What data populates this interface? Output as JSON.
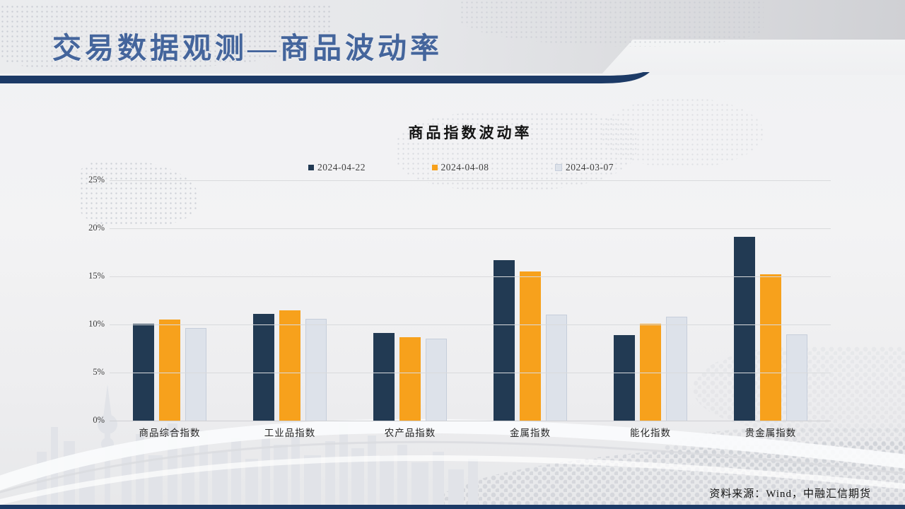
{
  "header": {
    "title": "交易数据观测—商品波动率"
  },
  "chart": {
    "title": "商品指数波动率"
  },
  "chart_data": {
    "type": "bar",
    "title": "商品指数波动率",
    "categories": [
      "商品综合指数",
      "工业品指数",
      "农产品指数",
      "金属指数",
      "能化指数",
      "贵金属指数"
    ],
    "series": [
      {
        "name": "2024-04-22",
        "color": "#223a53",
        "values": [
          10.1,
          11.1,
          9.1,
          16.7,
          8.9,
          19.1
        ]
      },
      {
        "name": "2024-04-08",
        "color": "#f7a11c",
        "values": [
          10.5,
          11.5,
          8.7,
          15.5,
          10.1,
          15.2
        ]
      },
      {
        "name": "2024-03-07",
        "color": "#dde2ea",
        "values": [
          9.6,
          10.6,
          8.5,
          11.0,
          10.8,
          9.0
        ]
      }
    ],
    "unit": "%",
    "xlabel": "",
    "ylabel": "",
    "ylim": [
      0,
      25
    ],
    "ytick_step": 5,
    "yticks": [
      "0%",
      "5%",
      "10%",
      "15%",
      "20%",
      "25%"
    ],
    "grid": true,
    "legend_position": "top"
  },
  "colors": {
    "title_blue": "#44659c",
    "divider_navy": "#1c3a66",
    "series_dark": "#223a53",
    "series_orange": "#f7a11c",
    "series_light": "#dde2ea"
  },
  "footer": {
    "source": "资料来源：Wind，中融汇信期货"
  }
}
